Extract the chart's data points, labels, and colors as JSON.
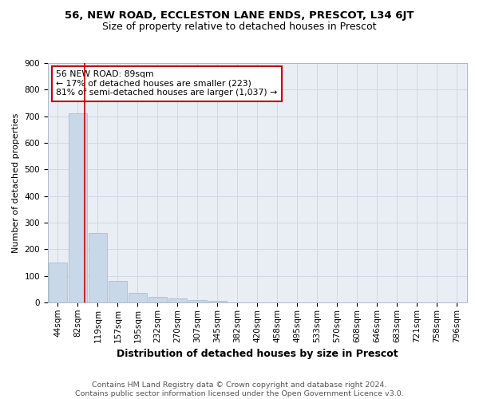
{
  "title": "56, NEW ROAD, ECCLESTON LANE ENDS, PRESCOT, L34 6JT",
  "subtitle": "Size of property relative to detached houses in Prescot",
  "xlabel": "Distribution of detached houses by size in Prescot",
  "ylabel": "Number of detached properties",
  "categories": [
    "44sqm",
    "82sqm",
    "119sqm",
    "157sqm",
    "195sqm",
    "232sqm",
    "270sqm",
    "307sqm",
    "345sqm",
    "382sqm",
    "420sqm",
    "458sqm",
    "495sqm",
    "533sqm",
    "570sqm",
    "608sqm",
    "646sqm",
    "683sqm",
    "721sqm",
    "758sqm",
    "796sqm"
  ],
  "values": [
    150,
    710,
    260,
    82,
    35,
    20,
    14,
    10,
    7,
    0,
    0,
    0,
    0,
    0,
    0,
    0,
    0,
    0,
    0,
    0,
    0
  ],
  "bar_color": "#c8d8e8",
  "bar_edge_color": "#a0b8cc",
  "grid_color": "#d0d8e8",
  "bg_color": "#e8eef4",
  "annotation_text": "56 NEW ROAD: 89sqm\n← 17% of detached houses are smaller (223)\n81% of semi-detached houses are larger (1,037) →",
  "annotation_box_color": "#ffffff",
  "annotation_border_color": "#cc0000",
  "vline_color": "#cc0000",
  "vline_x": 1.35,
  "ylim": [
    0,
    900
  ],
  "yticks": [
    0,
    100,
    200,
    300,
    400,
    500,
    600,
    700,
    800,
    900
  ],
  "footer_line1": "Contains HM Land Registry data © Crown copyright and database right 2024.",
  "footer_line2": "Contains public sector information licensed under the Open Government Licence v3.0.",
  "title_fontsize": 9.5,
  "subtitle_fontsize": 9,
  "xlabel_fontsize": 9,
  "ylabel_fontsize": 8,
  "tick_fontsize": 7.5,
  "annotation_fontsize": 7.8,
  "footer_fontsize": 6.8
}
